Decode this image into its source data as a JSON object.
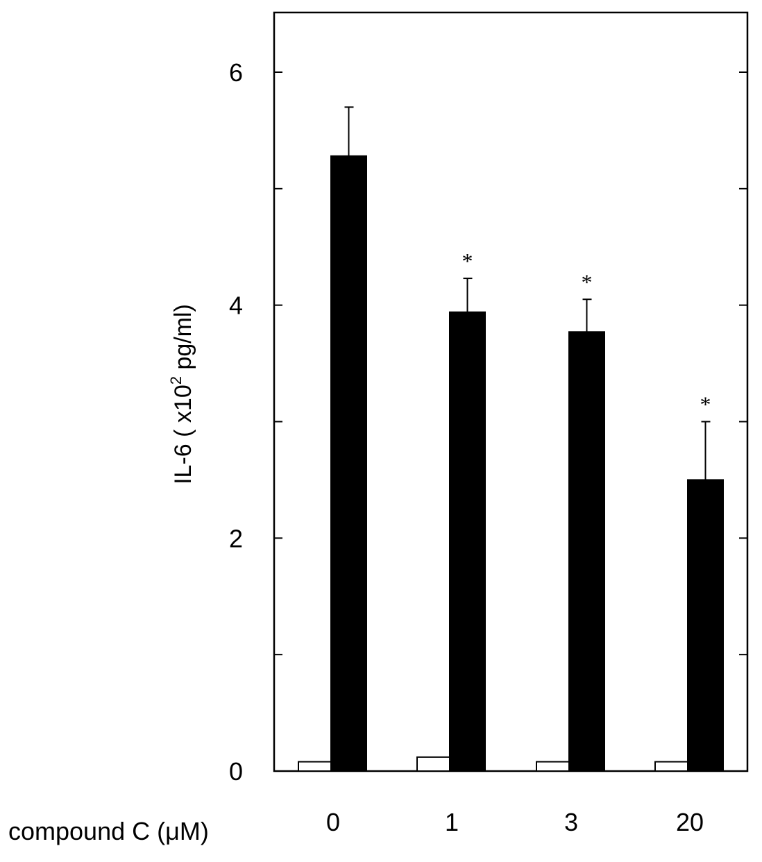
{
  "chart_data": {
    "type": "bar",
    "ylabel": "IL-6 ( x10",
    "ylabel_sup": "2",
    "ylabel_unit": " pg/ml)",
    "xlabel": "compound C (μM)",
    "categories": [
      "0",
      "1",
      "3",
      "20"
    ],
    "ylim": [
      0,
      6.5
    ],
    "yticks_major": [
      0,
      2,
      4,
      6
    ],
    "yticks_minor": [
      1,
      3,
      5
    ],
    "series": [
      {
        "values": [
          0.08,
          0.12,
          0.08,
          0.08
        ],
        "color": "#ffffff"
      },
      {
        "values": [
          5.28,
          3.94,
          3.77,
          2.5
        ],
        "errors": [
          0.42,
          0.29,
          0.28,
          0.5
        ],
        "color": "#000000"
      }
    ],
    "annotations": [
      "",
      "*",
      "*",
      "*"
    ],
    "grid": false
  }
}
